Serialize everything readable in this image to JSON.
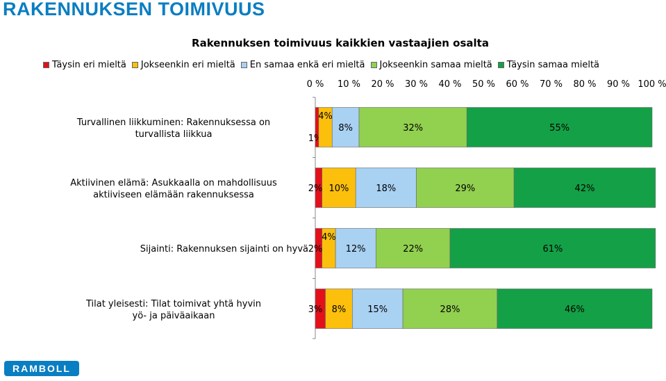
{
  "page_title": "RAKENNUKSEN TOIMIVUUS",
  "logo_text": "RAMBOLL",
  "chart_data": {
    "type": "bar",
    "orientation": "horizontal-stacked-100",
    "title": "Rakennuksen toimivuus kaikkien vastaajien osalta",
    "xlim": [
      0,
      100
    ],
    "x_ticks": [
      "0 %",
      "10 %",
      "20 %",
      "30 %",
      "40 %",
      "50 %",
      "60 %",
      "70 %",
      "80 %",
      "90 %",
      "100 %"
    ],
    "legend_position": "top",
    "categories": [
      "Turvallinen liikkuminen: Rakennuksessa on turvallista liikkua",
      "Aktiivinen elämä: Asukkaalla on mahdollisuus aktiiviseen elämään rakennuksessa",
      "Sijainti: Rakennuksen sijainti on hyvä",
      "Tilat yleisesti: Tilat toimivat yhtä hyvin yö- ja päiväaikaan"
    ],
    "series": [
      {
        "name": "Täysin eri mieltä",
        "color": "#e3101a",
        "values": [
          1,
          2,
          2,
          3
        ],
        "labels": [
          "1%",
          "2%",
          "2%",
          "3%"
        ]
      },
      {
        "name": "Jokseenkin eri mieltä",
        "color": "#fbbf0c",
        "values": [
          4,
          10,
          4,
          8
        ],
        "labels": [
          "4%",
          "10%",
          "4%",
          "8%"
        ]
      },
      {
        "name": "En samaa enkä eri mieltä",
        "color": "#a9d1f2",
        "values": [
          8,
          18,
          12,
          15
        ],
        "labels": [
          "8%",
          "18%",
          "12%",
          "15%"
        ]
      },
      {
        "name": "Jokseenkin samaa mieltä",
        "color": "#92d050",
        "values": [
          32,
          29,
          22,
          28
        ],
        "labels": [
          "32%",
          "29%",
          "22%",
          "28%"
        ]
      },
      {
        "name": "Täysin samaa mieltä",
        "color": "#14a046",
        "values": [
          55,
          42,
          61,
          46
        ],
        "labels": [
          "55%",
          "42%",
          "61%",
          "46%"
        ]
      }
    ]
  }
}
